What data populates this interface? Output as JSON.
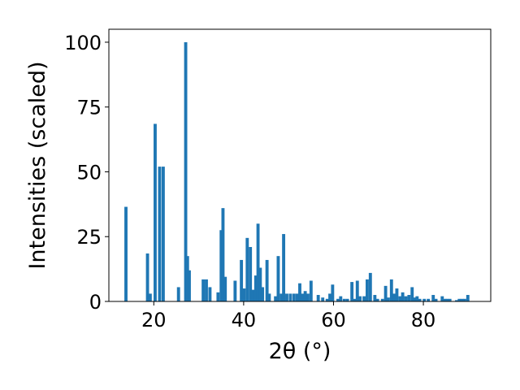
{
  "chart_data": {
    "type": "bar",
    "xlabel": "2θ (°)",
    "ylabel": "Intensities (scaled)",
    "xlim": [
      10,
      95
    ],
    "ylim": [
      0,
      105
    ],
    "xticks": [
      20,
      40,
      60,
      80
    ],
    "yticks": [
      0,
      25,
      50,
      75,
      100
    ],
    "grid": false,
    "bar_width": 0.7,
    "color": "#1f77b4",
    "x": [
      13.8,
      18.6,
      19.2,
      20.3,
      21.3,
      22.1,
      25.5,
      27.1,
      27.5,
      27.9,
      31.0,
      31.7,
      32.5,
      34.3,
      35.0,
      35.4,
      35.9,
      38.1,
      39.5,
      40.1,
      40.8,
      41.5,
      42.1,
      42.7,
      43.2,
      43.7,
      44.2,
      45.2,
      45.7,
      47.1,
      47.7,
      48.4,
      48.9,
      49.6,
      50.4,
      51.2,
      51.9,
      52.5,
      53.1,
      53.7,
      54.3,
      55.0,
      56.6,
      57.6,
      58.6,
      59.2,
      59.8,
      61.0,
      61.6,
      62.4,
      63.1,
      64.1,
      64.7,
      65.3,
      65.9,
      66.8,
      67.5,
      68.2,
      69.2,
      69.8,
      70.9,
      71.6,
      72.2,
      72.9,
      73.5,
      74.1,
      74.8,
      75.4,
      76.1,
      76.8,
      77.5,
      78.0,
      78.6,
      79.2,
      80.2,
      81.1,
      82.2,
      82.8,
      84.2,
      84.8,
      85.3,
      85.9,
      87.4,
      88.0,
      88.6,
      89.2,
      89.9
    ],
    "values": [
      36.5,
      18.5,
      3.0,
      68.5,
      52.0,
      52.0,
      5.5,
      100.0,
      17.5,
      12.0,
      8.5,
      8.5,
      5.5,
      3.5,
      27.5,
      36.0,
      9.5,
      8.0,
      16.0,
      5.0,
      24.5,
      21.0,
      4.5,
      10.0,
      30.0,
      13.0,
      5.5,
      16.0,
      3.0,
      2.0,
      17.5,
      3.0,
      26.0,
      3.0,
      3.0,
      3.0,
      3.0,
      7.0,
      3.0,
      4.0,
      3.0,
      8.0,
      2.5,
      1.5,
      1.0,
      3.0,
      6.5,
      1.0,
      2.0,
      1.0,
      1.0,
      7.5,
      1.0,
      8.0,
      2.0,
      2.0,
      8.5,
      11.0,
      2.5,
      1.0,
      1.0,
      6.0,
      1.5,
      8.5,
      3.0,
      5.0,
      2.0,
      3.5,
      2.0,
      2.5,
      5.5,
      1.5,
      2.0,
      1.0,
      1.0,
      1.0,
      2.5,
      1.0,
      2.0,
      1.0,
      1.0,
      1.0,
      0.5,
      1.0,
      1.0,
      1.0,
      2.5
    ]
  }
}
